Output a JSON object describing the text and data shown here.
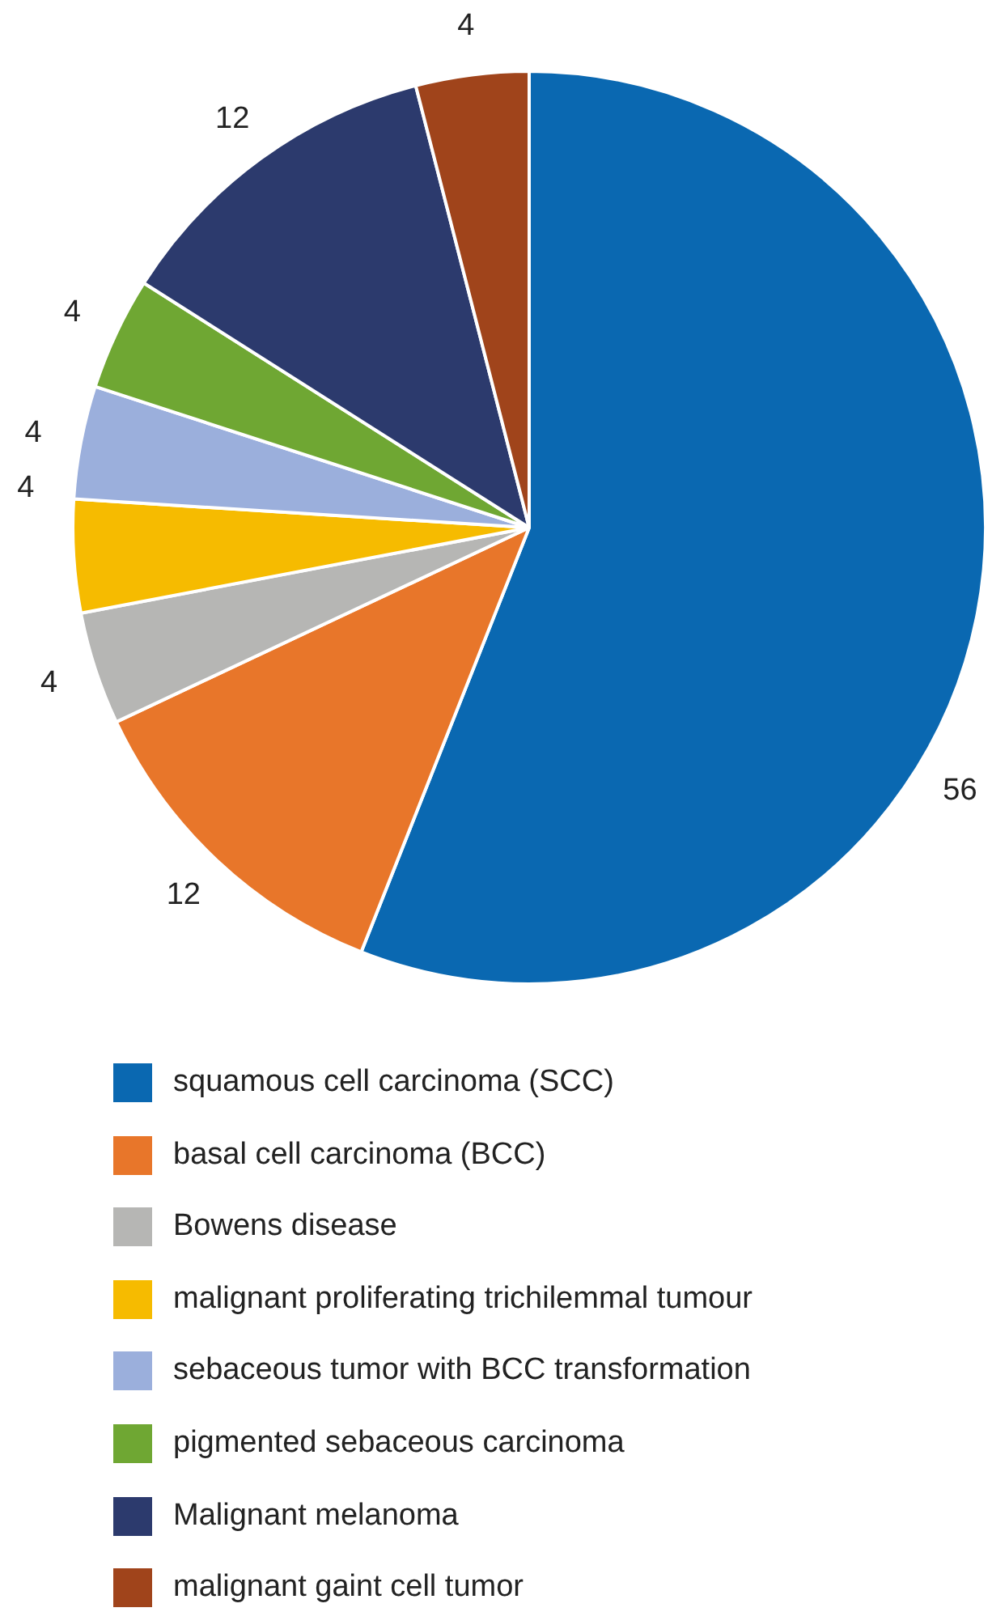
{
  "chart_data": {
    "type": "pie",
    "categories": [
      "squamous cell carcinoma (SCC)",
      "basal cell carcinoma (BCC)",
      "Bowens disease",
      "malignant proliferating trichilemmal tumour",
      "sebaceous tumor with BCC transformation",
      "pigmented sebaceous carcinoma",
      "Malignant melanoma",
      "malignant gaint cell tumor"
    ],
    "values": [
      56,
      12,
      4,
      4,
      4,
      4,
      12,
      4
    ],
    "colors": [
      "#0a68b1",
      "#e8762a",
      "#b6b6b4",
      "#f6bb00",
      "#9bafdc",
      "#6fa733",
      "#2c3a6d",
      "#a0441b"
    ],
    "data_labels": true,
    "legend": "bottom"
  }
}
